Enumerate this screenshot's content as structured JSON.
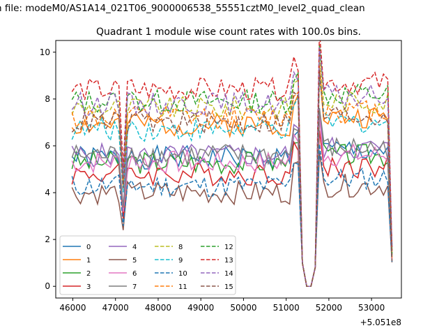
{
  "figure": {
    "suptitle": "n file: modeM0/AS1A14_021T06_9000006538_55551cztM0_level2_quad_clean",
    "title": "Quadrant 1 module wise count rates with 100.0s bins.",
    "x_offset_label": "+5.051e8"
  },
  "chart_data": {
    "type": "line",
    "title": "Quadrant 1 module wise count rates with 100.0s bins.",
    "xlabel": "",
    "ylabel": "",
    "x_offset": 505100000,
    "xlim": [
      45600,
      53700
    ],
    "ylim": [
      -0.5,
      10.5
    ],
    "xticks": [
      46000,
      47000,
      48000,
      49000,
      50000,
      51000,
      52000,
      53000
    ],
    "yticks": [
      0,
      2,
      4,
      6,
      8,
      10
    ],
    "xtick_labels": [
      "46000",
      "47000",
      "48000",
      "49000",
      "50000",
      "51000",
      "52000",
      "53000"
    ],
    "ytick_labels": [
      "0",
      "2",
      "4",
      "6",
      "8",
      "10"
    ],
    "grid": false,
    "legend_placement": "lower-left",
    "x_start": 45980,
    "x_step": 100,
    "series": [
      {
        "name": "0",
        "color": "#1f77b4",
        "dash": "solid",
        "base": 5.5
      },
      {
        "name": "1",
        "color": "#ff7f0e",
        "dash": "solid",
        "base": 6.9
      },
      {
        "name": "2",
        "color": "#2ca02c",
        "dash": "solid",
        "base": 5.3
      },
      {
        "name": "3",
        "color": "#d62728",
        "dash": "solid",
        "base": 4.8
      },
      {
        "name": "4",
        "color": "#9467bd",
        "dash": "solid",
        "base": 5.6
      },
      {
        "name": "5",
        "color": "#8c564b",
        "dash": "solid",
        "base": 4.0
      },
      {
        "name": "6",
        "color": "#e377c2",
        "dash": "solid",
        "base": 5.3
      },
      {
        "name": "7",
        "color": "#7f7f7f",
        "dash": "solid",
        "base": 5.6
      },
      {
        "name": "8",
        "color": "#bcbd22",
        "dash": "dashed",
        "base": 7.6
      },
      {
        "name": "9",
        "color": "#17becf",
        "dash": "dashed",
        "base": 6.7
      },
      {
        "name": "10",
        "color": "#1f77b4",
        "dash": "dashed",
        "base": 4.3
      },
      {
        "name": "11",
        "color": "#ff7f0e",
        "dash": "dashed",
        "base": 7.2
      },
      {
        "name": "12",
        "color": "#2ca02c",
        "dash": "dashed",
        "base": 7.9
      },
      {
        "name": "13",
        "color": "#d62728",
        "dash": "dashed",
        "base": 8.4
      },
      {
        "name": "14",
        "color": "#9467bd",
        "dash": "dashed",
        "base": 7.8
      },
      {
        "name": "15",
        "color": "#8c564b",
        "dash": "dashed",
        "base": 7.0
      }
    ]
  }
}
